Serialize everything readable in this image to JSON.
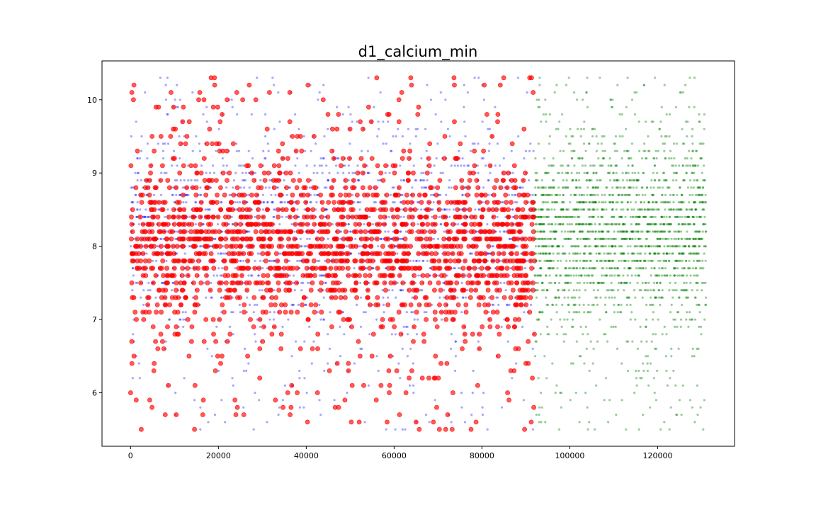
{
  "chart_data": {
    "type": "scatter",
    "title": "d1_calcium_min",
    "xlabel": "",
    "ylabel": "",
    "xlim": [
      -6500,
      137500
    ],
    "ylim": [
      5.27,
      10.53
    ],
    "xticks": [
      0,
      20000,
      40000,
      60000,
      80000,
      100000,
      120000
    ],
    "xtick_labels": [
      "0",
      "20000",
      "40000",
      "60000",
      "80000",
      "100000",
      "120000"
    ],
    "yticks": [
      6,
      7,
      8,
      9,
      10
    ],
    "ytick_labels": [
      "6",
      "7",
      "8",
      "9",
      "10"
    ],
    "grid": false,
    "y_levels": [
      5.5,
      5.6,
      5.7,
      5.8,
      5.9,
      6.0,
      6.1,
      6.2,
      6.3,
      6.4,
      6.5,
      6.6,
      6.7,
      6.8,
      6.9,
      7.0,
      7.1,
      7.2,
      7.3,
      7.4,
      7.5,
      7.6,
      7.7,
      7.8,
      7.9,
      8.0,
      8.1,
      8.2,
      8.3,
      8.4,
      8.5,
      8.6,
      8.7,
      8.8,
      8.9,
      9.0,
      9.1,
      9.2,
      9.3,
      9.4,
      9.5,
      9.6,
      9.7,
      9.8,
      9.9,
      10.0,
      10.1,
      10.2,
      10.3
    ],
    "series": [
      {
        "color": "#0000ff",
        "x_range": [
          0,
          92000
        ],
        "alpha": 0.35,
        "radius": 1.6,
        "density_peak": 8.2,
        "density_width": 0.85
      },
      {
        "color": "#ff0000",
        "x_range": [
          0,
          92000
        ],
        "alpha": 0.65,
        "radius": 3.1,
        "density_peak": 8.0,
        "density_width": 0.75
      },
      {
        "color": "#008000",
        "x_range": [
          92000,
          131000
        ],
        "alpha": 0.4,
        "radius": 1.6,
        "density_peak": 8.2,
        "density_width": 0.85
      }
    ]
  }
}
